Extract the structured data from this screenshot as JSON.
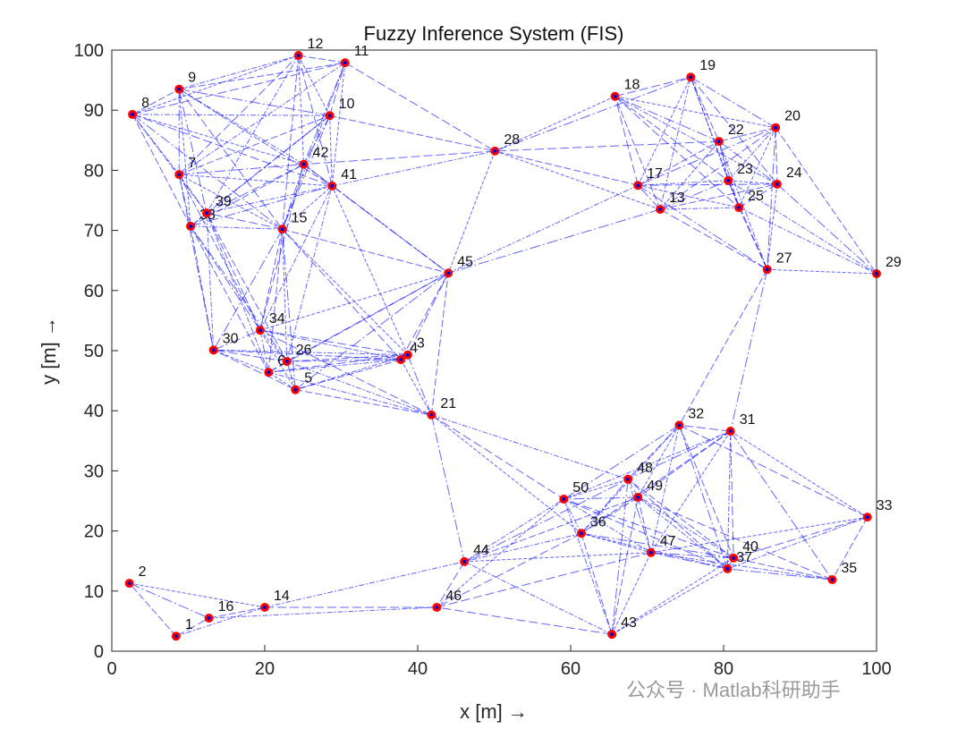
{
  "chart_data": {
    "type": "scatter",
    "title": "Fuzzy Inference System (FIS)",
    "xlabel": "x  [m] →",
    "ylabel": "y  [m] →",
    "xlim": [
      0,
      100
    ],
    "ylim": [
      0,
      100
    ],
    "xticks": [
      0,
      20,
      40,
      60,
      80,
      100
    ],
    "yticks": [
      0,
      10,
      20,
      30,
      40,
      50,
      60,
      70,
      80,
      90,
      100
    ],
    "grid": false,
    "link_range": 30,
    "node_color": "#ff0000",
    "edge_color": "#0000ff",
    "nodes": [
      {
        "id": "1",
        "x": 8.4,
        "y": 2.5
      },
      {
        "id": "2",
        "x": 2.3,
        "y": 11.3
      },
      {
        "id": "3",
        "x": 38.7,
        "y": 49.3
      },
      {
        "id": "4",
        "x": 37.8,
        "y": 48.5
      },
      {
        "id": "5",
        "x": 24.0,
        "y": 43.5
      },
      {
        "id": "6",
        "x": 20.5,
        "y": 46.4
      },
      {
        "id": "7",
        "x": 8.8,
        "y": 79.3
      },
      {
        "id": "8",
        "x": 2.7,
        "y": 89.3
      },
      {
        "id": "9",
        "x": 8.8,
        "y": 93.5
      },
      {
        "id": "10",
        "x": 28.5,
        "y": 89.1
      },
      {
        "id": "11",
        "x": 30.5,
        "y": 97.9
      },
      {
        "id": "12",
        "x": 24.4,
        "y": 99.1
      },
      {
        "id": "13",
        "x": 71.7,
        "y": 73.5
      },
      {
        "id": "14",
        "x": 20.0,
        "y": 7.3
      },
      {
        "id": "15",
        "x": 22.3,
        "y": 70.2
      },
      {
        "id": "16",
        "x": 12.7,
        "y": 5.5
      },
      {
        "id": "17",
        "x": 68.8,
        "y": 77.5
      },
      {
        "id": "18",
        "x": 65.8,
        "y": 92.3
      },
      {
        "id": "19",
        "x": 75.7,
        "y": 95.5
      },
      {
        "id": "20",
        "x": 86.8,
        "y": 87.1
      },
      {
        "id": "21",
        "x": 41.8,
        "y": 39.3
      },
      {
        "id": "22",
        "x": 79.4,
        "y": 84.8
      },
      {
        "id": "23",
        "x": 80.6,
        "y": 78.3
      },
      {
        "id": "24",
        "x": 87.0,
        "y": 77.7
      },
      {
        "id": "25",
        "x": 82.0,
        "y": 73.8
      },
      {
        "id": "26",
        "x": 22.9,
        "y": 48.2
      },
      {
        "id": "27",
        "x": 85.7,
        "y": 63.5
      },
      {
        "id": "28",
        "x": 50.1,
        "y": 83.2
      },
      {
        "id": "29",
        "x": 100.0,
        "y": 62.8
      },
      {
        "id": "30",
        "x": 13.3,
        "y": 50.1
      },
      {
        "id": "31",
        "x": 80.9,
        "y": 36.6
      },
      {
        "id": "32",
        "x": 74.2,
        "y": 37.6
      },
      {
        "id": "33",
        "x": 98.8,
        "y": 22.3
      },
      {
        "id": "34",
        "x": 19.4,
        "y": 53.4
      },
      {
        "id": "35",
        "x": 94.2,
        "y": 11.9
      },
      {
        "id": "36",
        "x": 61.4,
        "y": 19.6
      },
      {
        "id": "37",
        "x": 80.5,
        "y": 13.7
      },
      {
        "id": "38",
        "x": 10.3,
        "y": 70.7
      },
      {
        "id": "39",
        "x": 12.4,
        "y": 72.9
      },
      {
        "id": "40",
        "x": 81.3,
        "y": 15.5
      },
      {
        "id": "41",
        "x": 28.8,
        "y": 77.4
      },
      {
        "id": "42",
        "x": 25.1,
        "y": 81.0
      },
      {
        "id": "43",
        "x": 65.4,
        "y": 2.8
      },
      {
        "id": "44",
        "x": 46.1,
        "y": 14.9
      },
      {
        "id": "45",
        "x": 44.0,
        "y": 62.9
      },
      {
        "id": "46",
        "x": 42.5,
        "y": 7.3
      },
      {
        "id": "47",
        "x": 70.5,
        "y": 16.4
      },
      {
        "id": "48",
        "x": 67.5,
        "y": 28.6
      },
      {
        "id": "49",
        "x": 68.8,
        "y": 25.6
      },
      {
        "id": "50",
        "x": 59.1,
        "y": 25.3
      }
    ]
  },
  "watermark": "公众号 · Matlab科研助手"
}
